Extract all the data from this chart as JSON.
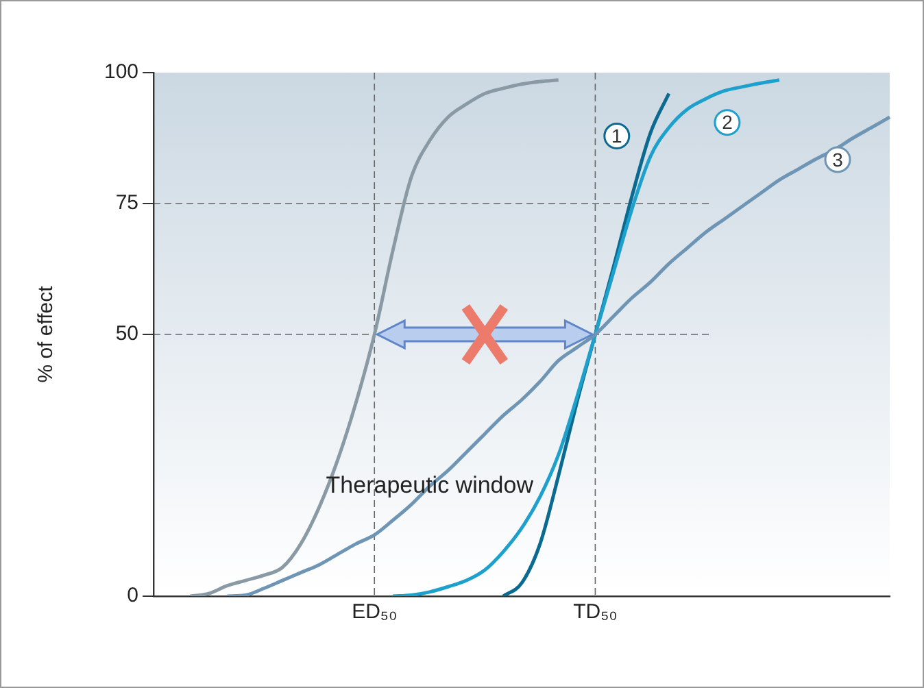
{
  "chart_data": {
    "type": "line",
    "ylabel": "% of effect",
    "ylim": [
      0,
      100
    ],
    "yticks": [
      0,
      50,
      75,
      100
    ],
    "legend": false,
    "grid": false,
    "marker": "none",
    "categories": [
      null,
      null,
      null,
      null,
      null,
      null,
      null,
      null,
      null,
      null,
      null,
      null,
      "ED₅₀",
      null,
      null,
      null,
      null,
      null,
      null,
      null,
      null,
      null,
      null,
      null,
      "TD₅₀",
      null,
      null,
      null,
      null,
      null,
      null,
      null,
      null,
      null,
      null,
      null,
      null,
      null,
      null,
      null,
      null
    ],
    "series": [
      {
        "color": "#8a9aa4",
        "values": [
          null,
          null,
          0,
          0.5,
          2,
          3,
          4,
          5.5,
          10,
          17,
          26,
          37,
          50,
          66,
          80,
          87,
          91.5,
          94,
          96,
          97,
          97.8,
          98.3,
          98.6,
          null,
          null,
          null,
          null,
          null,
          null,
          null,
          null,
          null,
          null,
          null,
          null,
          null,
          null,
          null,
          null,
          null,
          null
        ]
      },
      {
        "name": "3",
        "color": "#6f95b5",
        "values": [
          null,
          null,
          null,
          null,
          0,
          0.2,
          1.5,
          3,
          4.5,
          6,
          8,
          10,
          11.7,
          14.5,
          17.5,
          21,
          24,
          27.5,
          31,
          34.5,
          37.5,
          41,
          45,
          47.5,
          50,
          53.5,
          57,
          60,
          63.5,
          66.5,
          69.5,
          72,
          74.5,
          77,
          79.5,
          81.5,
          83.5,
          85.3,
          87.5,
          89.5,
          91.5
        ]
      },
      {
        "name": "2",
        "color": "#1ea0cc",
        "values": [
          null,
          null,
          null,
          null,
          null,
          null,
          null,
          null,
          null,
          null,
          null,
          null,
          null,
          0,
          0.2,
          0.8,
          1.8,
          3,
          5,
          8.5,
          13,
          19,
          27,
          38,
          50,
          62,
          74,
          84,
          89.5,
          93,
          95,
          96.5,
          97.3,
          98,
          98.6,
          null,
          null,
          null,
          null,
          null,
          null
        ]
      },
      {
        "name": "1",
        "color": "#0b6a8f",
        "values": [
          null,
          null,
          null,
          null,
          null,
          null,
          null,
          null,
          null,
          null,
          null,
          null,
          null,
          null,
          null,
          null,
          null,
          null,
          null,
          0,
          2.5,
          10,
          23,
          37,
          50,
          63,
          76.5,
          88.5,
          96,
          null,
          null,
          null,
          null,
          null,
          null,
          null,
          null,
          null,
          null,
          null,
          null
        ]
      }
    ],
    "ref_lines": [
      {
        "axis": "y",
        "value": 75,
        "line_style": "dashed"
      },
      {
        "axis": "y",
        "value": 50,
        "line_style": "dashed"
      },
      {
        "axis": "x",
        "value": "ED₅₀",
        "line_style": "dashed"
      },
      {
        "axis": "x",
        "value": "TD₅₀",
        "line_style": "dashed"
      }
    ],
    "annotations": [
      "Therapeutic window"
    ]
  }
}
